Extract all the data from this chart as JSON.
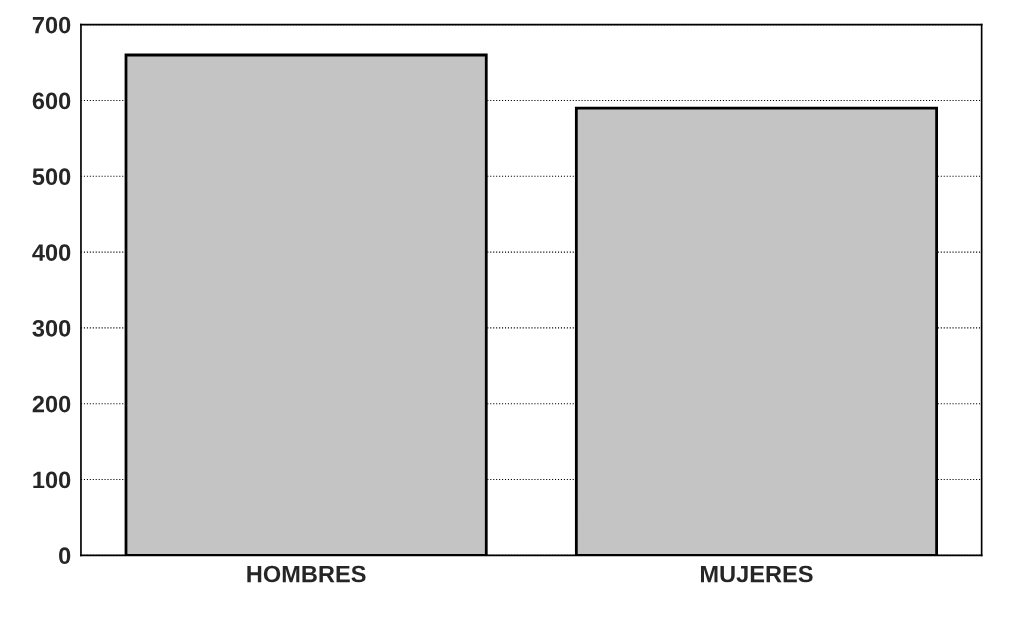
{
  "chart_data": {
    "type": "bar",
    "categories": [
      "HOMBRES",
      "MUJERES"
    ],
    "values": [
      660,
      590
    ],
    "color": "#c4c4c4",
    "ylim": [
      0,
      700
    ],
    "yticks": [
      0,
      100,
      200,
      300,
      400,
      500,
      600,
      700
    ],
    "grid": "y"
  }
}
